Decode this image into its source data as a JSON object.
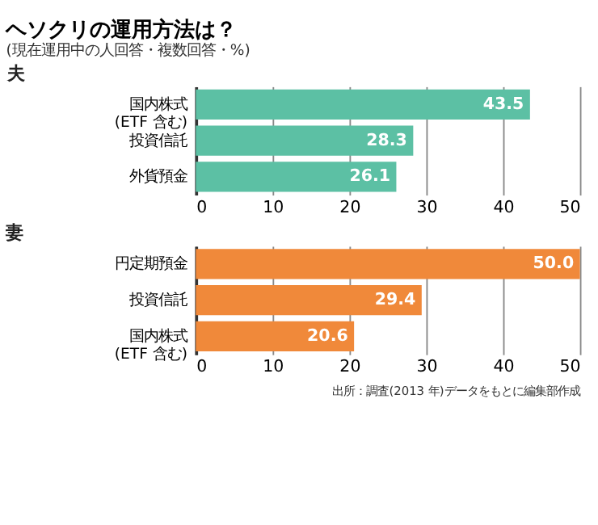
{
  "chart_data": [
    {
      "type": "bar",
      "orientation": "horizontal",
      "title": "ヘソクリの運用方法は？",
      "subtitle": "(現在運用中の人回答・複数回答・%)",
      "annotations": [
        "夫"
      ],
      "categories": [
        "国内株式\n(ETF 含む)",
        "投資信託",
        "外貨預金"
      ],
      "values": [
        43.5,
        28.3,
        26.1
      ],
      "value_labels": [
        "43.5",
        "28.3",
        "26.1"
      ],
      "color": "#5cc0a4",
      "xlim": [
        0,
        50
      ],
      "xticks": [
        0,
        10,
        20,
        30,
        40,
        50
      ],
      "grid": "x"
    },
    {
      "type": "bar",
      "orientation": "horizontal",
      "annotations": [
        "妻",
        "出所：調査(2013 年)データをもとに編集部作成"
      ],
      "categories": [
        "円定期預金",
        "投資信託",
        "国内株式\n(ETF 含む)"
      ],
      "values": [
        50.0,
        29.4,
        20.6
      ],
      "value_labels": [
        "50.0",
        "29.4",
        "20.6"
      ],
      "color": "#f0893a",
      "xlim": [
        0,
        50
      ],
      "xticks": [
        0,
        10,
        20,
        30,
        40,
        50
      ],
      "grid": "x"
    }
  ]
}
